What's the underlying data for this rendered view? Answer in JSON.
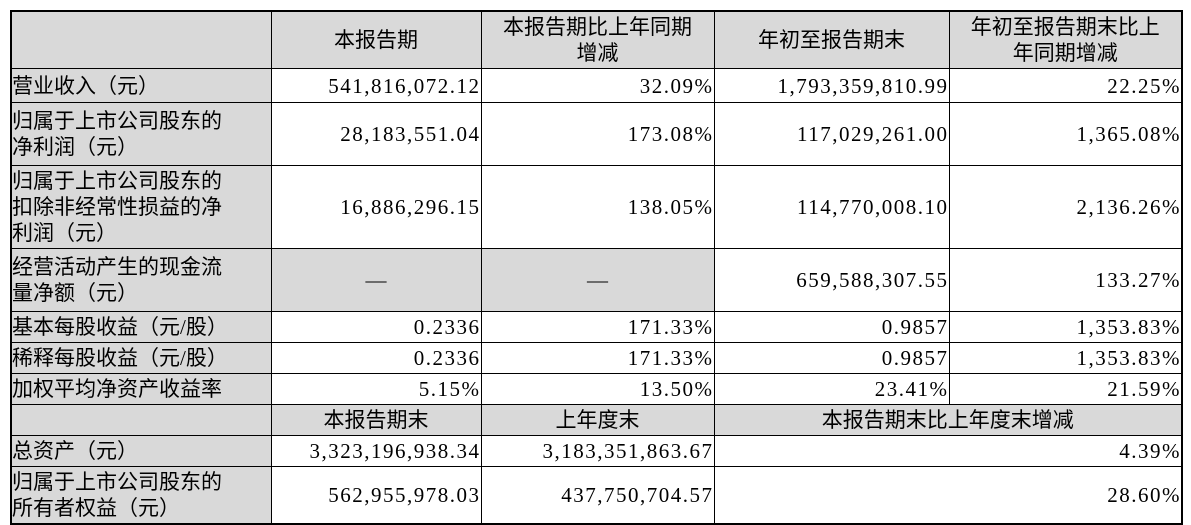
{
  "colors": {
    "shading": "#d9d9d9",
    "border": "#000000",
    "text": "#000000",
    "background": "#ffffff"
  },
  "table": {
    "header_row": {
      "corner": "",
      "current_period": "本报告期",
      "current_period_yoy": "本报告期比上年同期\n增减",
      "ytd": "年初至报告期末",
      "ytd_yoy": "年初至报告期末比上\n年同期增减"
    },
    "rows": [
      {
        "label": "营业收入（元）",
        "values": [
          "541,816,072.12",
          "32.09%",
          "1,793,359,810.99",
          "22.25%"
        ]
      },
      {
        "label": "归属于上市公司股东的\n净利润（元）",
        "values": [
          "28,183,551.04",
          "173.08%",
          "117,029,261.00",
          "1,365.08%"
        ]
      },
      {
        "label": "归属于上市公司股东的\n扣除非经常性损益的净\n利润（元）",
        "values": [
          "16,886,296.15",
          "138.05%",
          "114,770,008.10",
          "2,136.26%"
        ]
      },
      {
        "label": "经营活动产生的现金流\n量净额（元）",
        "values": [
          "—",
          "—",
          "659,588,307.55",
          "133.27%"
        ]
      },
      {
        "label": "基本每股收益（元/股）",
        "values": [
          "0.2336",
          "171.33%",
          "0.9857",
          "1,353.83%"
        ]
      },
      {
        "label": "稀释每股收益（元/股）",
        "values": [
          "0.2336",
          "171.33%",
          "0.9857",
          "1,353.83%"
        ]
      },
      {
        "label": "加权平均净资产收益率",
        "values": [
          "5.15%",
          "13.50%",
          "23.41%",
          "21.59%"
        ]
      }
    ],
    "subheader_row": {
      "corner": "",
      "end_of_period": "本报告期末",
      "end_of_last_year": "上年度末",
      "change_vs_last_year_end": "本报告期末比上年度末增减"
    },
    "bottom_rows": [
      {
        "label": "总资产（元）",
        "values": [
          "3,323,196,938.34",
          "3,183,351,863.67",
          "4.39%"
        ]
      },
      {
        "label": "归属于上市公司股东的\n所有者权益（元）",
        "values": [
          "562,955,978.03",
          "437,750,704.57",
          "28.60%"
        ]
      }
    ]
  }
}
